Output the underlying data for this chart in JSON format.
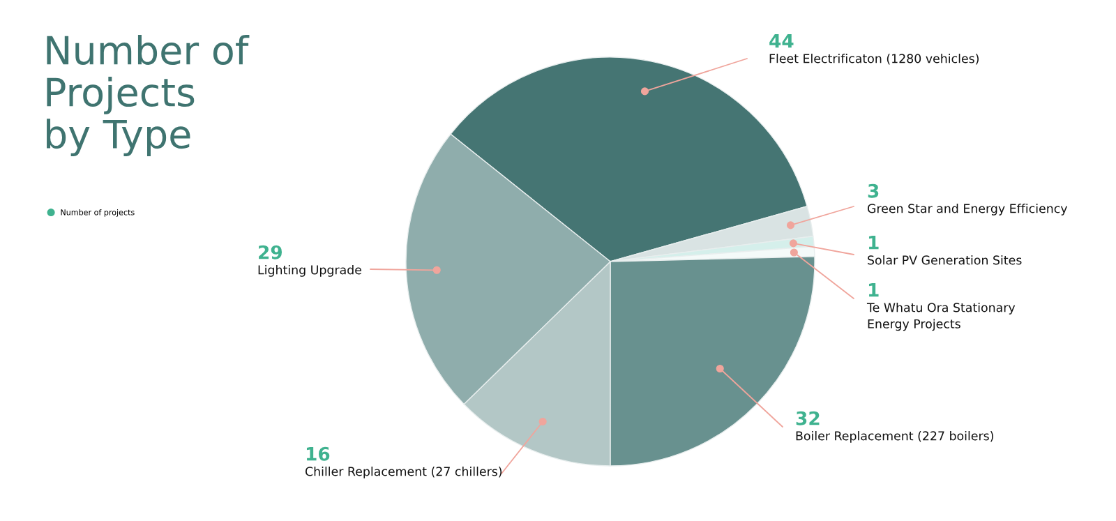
{
  "chart_data": {
    "type": "pie",
    "title": "Number of\nProjects\nby Type",
    "categories": [
      "Fleet Electrificaton (1280 vehicles)",
      "Green Star and Energy Efficiency",
      "Solar PV Generation Sites",
      "Te Whatu Ora Stationary\nEnergy Projects",
      "Boiler Replacement (227 boilers)",
      "Chiller Replacement (27 chillers)",
      "Lighting Upgrade"
    ],
    "series": [
      {
        "name": "Number of projects",
        "color": "#3fb28f",
        "values": [
          44,
          3,
          1,
          1,
          32,
          16,
          29
        ]
      }
    ],
    "colors": [
      "#457573",
      "#d9e3e3",
      "#d5efeb",
      "#f4faf9",
      "#68918f",
      "#b3c7c6",
      "#8fadac"
    ],
    "data_labels": true,
    "legend": "top left"
  }
}
